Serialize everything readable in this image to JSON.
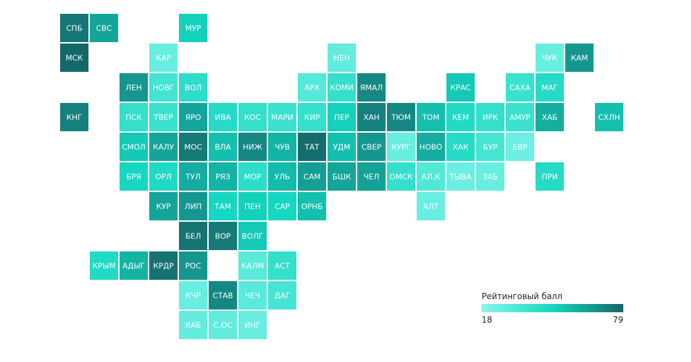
{
  "chart_data": {
    "type": "tilemap",
    "colorscale": [
      "#86f7ec",
      "#14d6c0",
      "#15686a"
    ],
    "legend": {
      "title": "Рейтинговый балл",
      "min": 18,
      "max": 79
    },
    "tiles": [
      {
        "label": "СПБ",
        "row": 0,
        "col": 0,
        "value": 75
      },
      {
        "label": "СВС",
        "row": 0,
        "col": 1,
        "value": 62
      },
      {
        "label": "МУР",
        "row": 0,
        "col": 4,
        "value": 50
      },
      {
        "label": "МСК",
        "row": 1,
        "col": 0,
        "value": 79
      },
      {
        "label": "КАР",
        "row": 1,
        "col": 3,
        "value": 26
      },
      {
        "label": "НЕН",
        "row": 1,
        "col": 9,
        "value": 28
      },
      {
        "label": "ЧУК",
        "row": 1,
        "col": 16,
        "value": 26
      },
      {
        "label": "КАМ",
        "row": 1,
        "col": 17,
        "value": 66
      },
      {
        "label": "ЛЕН",
        "row": 2,
        "col": 2,
        "value": 66
      },
      {
        "label": "НОВГ",
        "row": 2,
        "col": 3,
        "value": 36
      },
      {
        "label": "ВОЛ",
        "row": 2,
        "col": 4,
        "value": 42
      },
      {
        "label": "АРХ",
        "row": 2,
        "col": 8,
        "value": 31
      },
      {
        "label": "КОМИ",
        "row": 2,
        "col": 9,
        "value": 40
      },
      {
        "label": "ЯМАЛ",
        "row": 2,
        "col": 10,
        "value": 70
      },
      {
        "label": "КРАС",
        "row": 2,
        "col": 13,
        "value": 52
      },
      {
        "label": "САХА",
        "row": 2,
        "col": 15,
        "value": 38
      },
      {
        "label": "МАГ",
        "row": 2,
        "col": 16,
        "value": 44
      },
      {
        "label": "КНГ",
        "row": 3,
        "col": 0,
        "value": 72
      },
      {
        "label": "ПСК",
        "row": 3,
        "col": 2,
        "value": 40
      },
      {
        "label": "ТВЕР",
        "row": 3,
        "col": 3,
        "value": 38
      },
      {
        "label": "ЯРО",
        "row": 3,
        "col": 4,
        "value": 62
      },
      {
        "label": "ИВА",
        "row": 3,
        "col": 5,
        "value": 44
      },
      {
        "label": "КОС",
        "row": 3,
        "col": 6,
        "value": 40
      },
      {
        "label": "МАРИ",
        "row": 3,
        "col": 7,
        "value": 38
      },
      {
        "label": "КИР",
        "row": 3,
        "col": 8,
        "value": 40
      },
      {
        "label": "ПЕР",
        "row": 3,
        "col": 9,
        "value": 50
      },
      {
        "label": "ХАН",
        "row": 3,
        "col": 10,
        "value": 72
      },
      {
        "label": "ТЮМ",
        "row": 3,
        "col": 11,
        "value": 70
      },
      {
        "label": "ТОМ",
        "row": 3,
        "col": 12,
        "value": 55
      },
      {
        "label": "КЕМ",
        "row": 3,
        "col": 13,
        "value": 45
      },
      {
        "label": "ИРК",
        "row": 3,
        "col": 14,
        "value": 40
      },
      {
        "label": "АМУР",
        "row": 3,
        "col": 15,
        "value": 38
      },
      {
        "label": "ХАБ",
        "row": 3,
        "col": 16,
        "value": 60
      },
      {
        "label": "СХЛН",
        "row": 3,
        "col": 18,
        "value": 55
      },
      {
        "label": "СМОЛ",
        "row": 4,
        "col": 2,
        "value": 52
      },
      {
        "label": "КАЛУ",
        "row": 4,
        "col": 3,
        "value": 62
      },
      {
        "label": "МОС",
        "row": 4,
        "col": 4,
        "value": 74
      },
      {
        "label": "ВЛА",
        "row": 4,
        "col": 5,
        "value": 55
      },
      {
        "label": "НИЖ",
        "row": 4,
        "col": 6,
        "value": 70
      },
      {
        "label": "ЧУВ",
        "row": 4,
        "col": 7,
        "value": 58
      },
      {
        "label": "ТАТ",
        "row": 4,
        "col": 8,
        "value": 78
      },
      {
        "label": "УДМ",
        "row": 4,
        "col": 9,
        "value": 55
      },
      {
        "label": "СВЕР",
        "row": 4,
        "col": 10,
        "value": 66
      },
      {
        "label": "КУРГ",
        "row": 4,
        "col": 11,
        "value": 26
      },
      {
        "label": "НОВО",
        "row": 4,
        "col": 12,
        "value": 60
      },
      {
        "label": "ХАК",
        "row": 4,
        "col": 13,
        "value": 44
      },
      {
        "label": "БУР",
        "row": 4,
        "col": 14,
        "value": 35
      },
      {
        "label": "ЕВР",
        "row": 4,
        "col": 15,
        "value": 25
      },
      {
        "label": "БРЯ",
        "row": 5,
        "col": 2,
        "value": 48
      },
      {
        "label": "ОРЛ",
        "row": 5,
        "col": 3,
        "value": 45
      },
      {
        "label": "ТУЛ",
        "row": 5,
        "col": 4,
        "value": 60
      },
      {
        "label": "РЯЗ",
        "row": 5,
        "col": 5,
        "value": 58
      },
      {
        "label": "МОР",
        "row": 5,
        "col": 6,
        "value": 42
      },
      {
        "label": "УЛЬ",
        "row": 5,
        "col": 7,
        "value": 56
      },
      {
        "label": "САМ",
        "row": 5,
        "col": 8,
        "value": 64
      },
      {
        "label": "БШК",
        "row": 5,
        "col": 9,
        "value": 62
      },
      {
        "label": "ЧЕЛ",
        "row": 5,
        "col": 10,
        "value": 63
      },
      {
        "label": "ОМСК",
        "row": 5,
        "col": 11,
        "value": 40
      },
      {
        "label": "АЛ.К",
        "row": 5,
        "col": 12,
        "value": 32
      },
      {
        "label": "ТЫВА",
        "row": 5,
        "col": 13,
        "value": 25
      },
      {
        "label": "ЗАБ",
        "row": 5,
        "col": 14,
        "value": 26
      },
      {
        "label": "ПРИ",
        "row": 5,
        "col": 16,
        "value": 44
      },
      {
        "label": "КУР",
        "row": 6,
        "col": 3,
        "value": 62
      },
      {
        "label": "ЛИП",
        "row": 6,
        "col": 4,
        "value": 66
      },
      {
        "label": "ТАМ",
        "row": 6,
        "col": 5,
        "value": 48
      },
      {
        "label": "ПЕН",
        "row": 6,
        "col": 6,
        "value": 50
      },
      {
        "label": "САР",
        "row": 6,
        "col": 7,
        "value": 48
      },
      {
        "label": "ОРНБ",
        "row": 6,
        "col": 8,
        "value": 55
      },
      {
        "label": "АЛТ",
        "row": 6,
        "col": 12,
        "value": 26
      },
      {
        "label": "БЕЛ",
        "row": 7,
        "col": 4,
        "value": 76
      },
      {
        "label": "ВОР",
        "row": 7,
        "col": 5,
        "value": 74
      },
      {
        "label": "ВОЛГ",
        "row": 7,
        "col": 6,
        "value": 52
      },
      {
        "label": "КРЫМ",
        "row": 8,
        "col": 1,
        "value": 45
      },
      {
        "label": "АДЫГ",
        "row": 8,
        "col": 2,
        "value": 58
      },
      {
        "label": "КРДР",
        "row": 8,
        "col": 3,
        "value": 76
      },
      {
        "label": "РОС",
        "row": 8,
        "col": 4,
        "value": 66
      },
      {
        "label": "КАЛМ",
        "row": 8,
        "col": 6,
        "value": 30
      },
      {
        "label": "АСТ",
        "row": 8,
        "col": 7,
        "value": 40
      },
      {
        "label": "КЧР",
        "row": 9,
        "col": 4,
        "value": 26
      },
      {
        "label": "СТАВ",
        "row": 9,
        "col": 5,
        "value": 70
      },
      {
        "label": "ЧЕЧ",
        "row": 9,
        "col": 6,
        "value": 30
      },
      {
        "label": "ДАГ",
        "row": 9,
        "col": 7,
        "value": 35
      },
      {
        "label": "КАБ",
        "row": 10,
        "col": 4,
        "value": 27
      },
      {
        "label": "С.ОС",
        "row": 10,
        "col": 5,
        "value": 28
      },
      {
        "label": "ИНГ",
        "row": 10,
        "col": 6,
        "value": 26
      }
    ]
  }
}
